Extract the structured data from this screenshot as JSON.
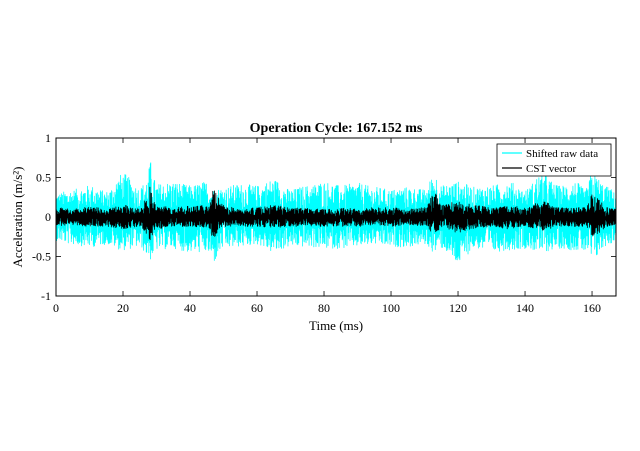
{
  "chart_data": {
    "type": "line",
    "title": "Operation Cycle: 167.152 ms",
    "xlabel": "Time (ms)",
    "ylabel": "Acceleration (m/s²)",
    "xlim": [
      0,
      167.152
    ],
    "ylim": [
      -1,
      1
    ],
    "xticks": [
      0,
      20,
      40,
      60,
      80,
      100,
      120,
      140,
      160
    ],
    "yticks": [
      1,
      0.5,
      0,
      -0.5,
      -1
    ],
    "xtick_labels": [
      "0",
      "20",
      "40",
      "60",
      "80",
      "100",
      "120",
      "140",
      "160"
    ],
    "ytick_labels": [
      "1",
      "0.5",
      "0",
      "-0.5",
      "-1"
    ],
    "grid": false,
    "legend_position": "top-right",
    "series": [
      {
        "name": "Shifted raw data",
        "color": "#00ffff",
        "envelope_x": [
          0,
          5,
          10,
          15,
          20,
          25,
          27.5,
          28,
          30,
          35,
          40,
          45,
          47,
          50,
          55,
          60,
          65,
          70,
          75,
          80,
          85,
          90,
          95,
          100,
          105,
          110,
          113,
          115,
          120,
          125,
          130,
          135,
          140,
          145,
          150,
          155,
          158,
          160,
          165,
          167.152
        ],
        "envelope_max": [
          0.3,
          0.35,
          0.4,
          0.33,
          0.55,
          0.38,
          0.5,
          0.72,
          0.42,
          0.45,
          0.4,
          0.45,
          0.35,
          0.38,
          0.42,
          0.4,
          0.48,
          0.35,
          0.4,
          0.45,
          0.4,
          0.43,
          0.38,
          0.35,
          0.38,
          0.35,
          0.55,
          0.4,
          0.45,
          0.38,
          0.4,
          0.45,
          0.35,
          0.55,
          0.4,
          0.45,
          0.35,
          0.55,
          0.38,
          0.3
        ],
        "envelope_min": [
          -0.3,
          -0.35,
          -0.38,
          -0.35,
          -0.42,
          -0.38,
          -0.5,
          -0.55,
          -0.42,
          -0.4,
          -0.45,
          -0.45,
          -0.58,
          -0.4,
          -0.38,
          -0.35,
          -0.45,
          -0.38,
          -0.38,
          -0.4,
          -0.4,
          -0.38,
          -0.35,
          -0.38,
          -0.38,
          -0.35,
          -0.45,
          -0.4,
          -0.6,
          -0.4,
          -0.45,
          -0.42,
          -0.4,
          -0.45,
          -0.4,
          -0.42,
          -0.45,
          -0.55,
          -0.35,
          -0.3
        ]
      },
      {
        "name": "CST vector",
        "color": "#000000",
        "envelope_x": [
          0,
          5,
          10,
          15,
          20,
          25,
          27.5,
          28,
          30,
          35,
          40,
          45,
          47,
          50,
          55,
          60,
          65,
          70,
          75,
          80,
          85,
          90,
          95,
          100,
          105,
          110,
          113,
          115,
          120,
          125,
          130,
          135,
          140,
          145,
          150,
          155,
          158,
          160,
          165,
          167.152
        ],
        "envelope_max": [
          0.12,
          0.1,
          0.14,
          0.1,
          0.15,
          0.12,
          0.25,
          0.4,
          0.15,
          0.12,
          0.14,
          0.15,
          0.35,
          0.15,
          0.1,
          0.12,
          0.15,
          0.12,
          0.12,
          0.1,
          0.12,
          0.1,
          0.12,
          0.12,
          0.1,
          0.12,
          0.32,
          0.15,
          0.2,
          0.15,
          0.12,
          0.15,
          0.12,
          0.2,
          0.12,
          0.12,
          0.12,
          0.28,
          0.12,
          0.1
        ],
        "envelope_min": [
          -0.12,
          -0.1,
          -0.12,
          -0.12,
          -0.15,
          -0.12,
          -0.22,
          -0.3,
          -0.15,
          -0.12,
          -0.12,
          -0.15,
          -0.28,
          -0.12,
          -0.12,
          -0.12,
          -0.14,
          -0.12,
          -0.12,
          -0.12,
          -0.12,
          -0.12,
          -0.1,
          -0.12,
          -0.1,
          -0.12,
          -0.22,
          -0.15,
          -0.2,
          -0.15,
          -0.12,
          -0.15,
          -0.12,
          -0.18,
          -0.12,
          -0.12,
          -0.12,
          -0.25,
          -0.12,
          -0.1
        ]
      }
    ]
  }
}
